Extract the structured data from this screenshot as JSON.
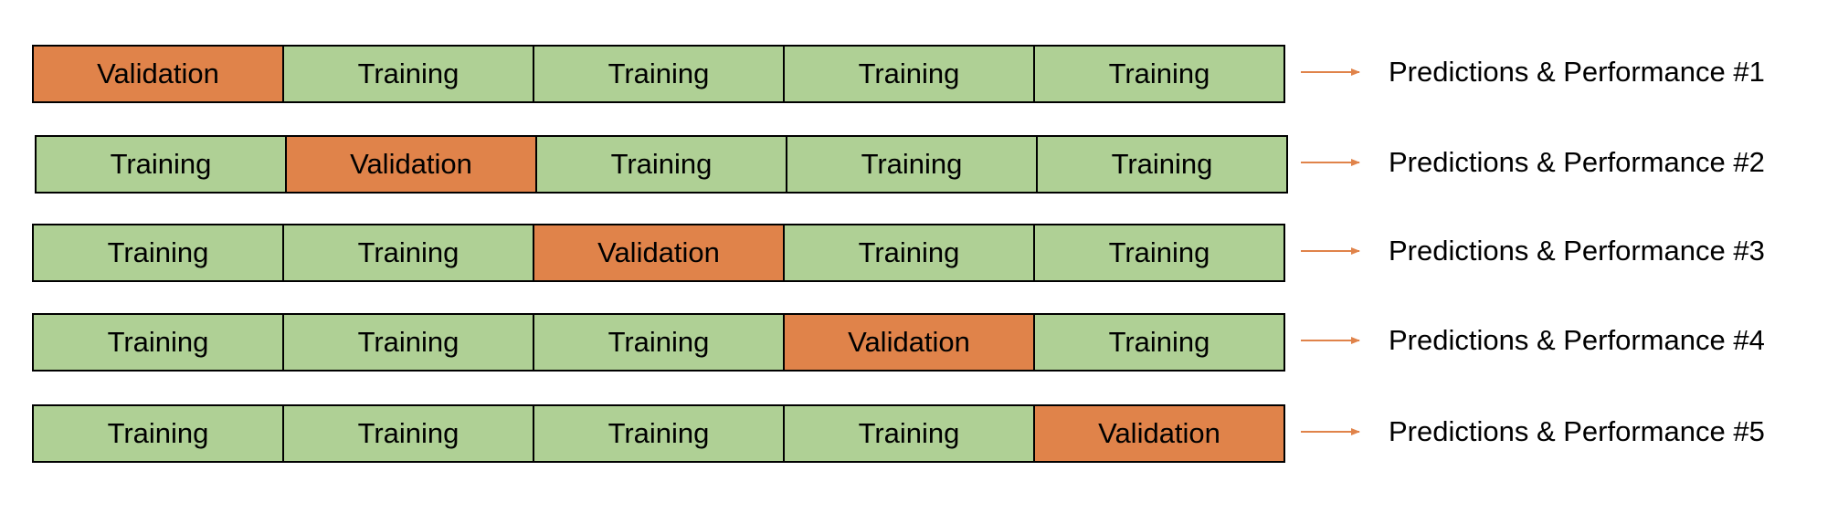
{
  "rows": [
    {
      "cells": [
        "Validation",
        "Training",
        "Training",
        "Training",
        "Training"
      ],
      "result": "Predictions & Performance #1"
    },
    {
      "cells": [
        "Training",
        "Validation",
        "Training",
        "Training",
        "Training"
      ],
      "result": "Predictions & Performance #2"
    },
    {
      "cells": [
        "Training",
        "Training",
        "Validation",
        "Training",
        "Training"
      ],
      "result": "Predictions & Performance #3"
    },
    {
      "cells": [
        "Training",
        "Training",
        "Training",
        "Validation",
        "Training"
      ],
      "result": "Predictions & Performance #4"
    },
    {
      "cells": [
        "Training",
        "Training",
        "Training",
        "Training",
        "Validation"
      ],
      "result": "Predictions & Performance #5"
    }
  ]
}
